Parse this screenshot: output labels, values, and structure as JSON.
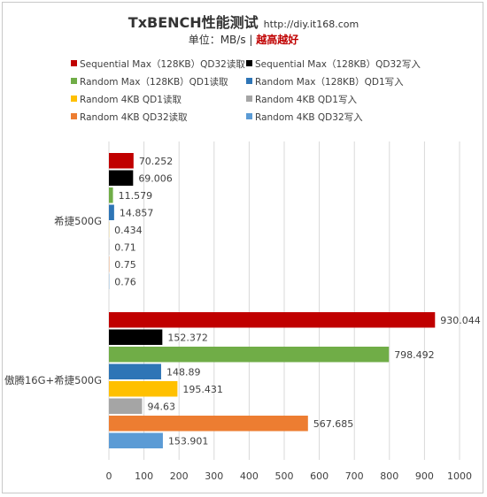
{
  "title": "TxBENCH性能测试",
  "title_url": "http://diy.it168.com",
  "subtitle_prefix": "单位：MB/s | ",
  "subtitle_highlight": "越高越好",
  "colors": {
    "seq_read": "#c00000",
    "seq_write": "#000000",
    "rnd128_read": "#70ad47",
    "rnd128_write": "#2e75b6",
    "rnd4k_qd1_read": "#ffc000",
    "rnd4k_qd1_write": "#a5a5a5",
    "rnd4k_qd32_read": "#ed7d31",
    "rnd4k_qd32_write": "#5b9bd5"
  },
  "chart_data": {
    "type": "bar",
    "orientation": "horizontal",
    "categories": [
      "希捷500G",
      "傲腾16G+希捷500G"
    ],
    "series": [
      {
        "name": "Sequential Max（128KB）QD32读取",
        "color": "#c00000",
        "values": [
          70.252,
          930.044
        ],
        "labels": [
          "70.252",
          "930.044"
        ]
      },
      {
        "name": "Sequential Max（128KB）QD32写入",
        "color": "#000000",
        "values": [
          69.006,
          152.372
        ],
        "labels": [
          "69.006",
          "152.372"
        ]
      },
      {
        "name": "Random Max（128KB）QD1读取",
        "color": "#70ad47",
        "values": [
          11.579,
          798.492
        ],
        "labels": [
          "11.579",
          "798.492"
        ]
      },
      {
        "name": "Random Max（128KB）QD1写入",
        "color": "#2e75b6",
        "values": [
          14.857,
          148.89
        ],
        "labels": [
          "14.857",
          "148.89"
        ]
      },
      {
        "name": "Random 4KB QD1读取",
        "color": "#ffc000",
        "values": [
          0.434,
          195.431
        ],
        "labels": [
          "0.434",
          "195.431"
        ]
      },
      {
        "name": "Random 4KB QD1写入",
        "color": "#a5a5a5",
        "values": [
          0.71,
          94.63
        ],
        "labels": [
          "0.71",
          "94.63"
        ]
      },
      {
        "name": "Random 4KB QD32读取",
        "color": "#ed7d31",
        "values": [
          0.75,
          567.685
        ],
        "labels": [
          "0.75",
          "567.685"
        ]
      },
      {
        "name": "Random 4KB QD32写入",
        "color": "#5b9bd5",
        "values": [
          0.76,
          153.901
        ],
        "labels": [
          "0.76",
          "153.901"
        ]
      }
    ],
    "xlim": [
      0,
      1000
    ],
    "xticks": [
      "0",
      "100",
      "200",
      "300",
      "400",
      "500",
      "600",
      "700",
      "800",
      "900",
      "1000"
    ],
    "grid": true,
    "legend_position": "top"
  }
}
